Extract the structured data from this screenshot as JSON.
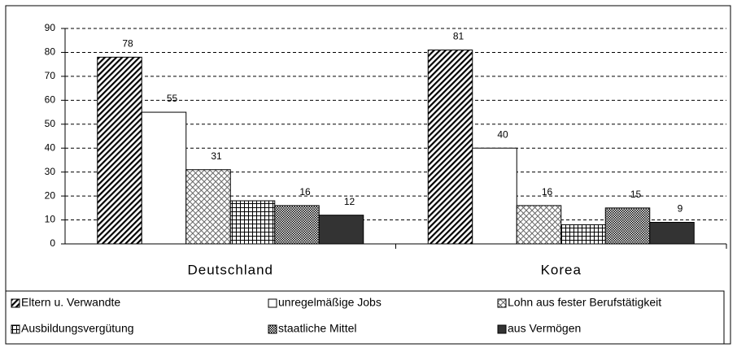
{
  "chart_data": {
    "type": "bar",
    "categories": [
      "Deutschland",
      "Korea"
    ],
    "series": [
      {
        "name": "Eltern u. Verwandte",
        "color": "#000000",
        "pattern": "diagonal",
        "values": [
          78,
          81
        ]
      },
      {
        "name": "unregelmäßige Jobs",
        "color": "#ffffff",
        "pattern": "none",
        "values": [
          55,
          40
        ]
      },
      {
        "name": "Lohn aus fester Berufstätigkeit",
        "color": "#000000",
        "pattern": "crosshatch",
        "values": [
          31,
          16
        ]
      },
      {
        "name": "Ausbildungsvergütung",
        "color": "#000000",
        "pattern": "grid",
        "labels": false,
        "values": [
          18,
          8
        ]
      },
      {
        "name": "staatliche Mittel",
        "color": "#000000",
        "pattern": "dots",
        "values": [
          16,
          15
        ]
      },
      {
        "name": "aus Vermögen",
        "color": "#333333",
        "pattern": "solid",
        "values": [
          12,
          9
        ]
      }
    ],
    "ylim": [
      0,
      90
    ],
    "yticks": [
      0,
      10,
      20,
      30,
      40,
      50,
      60,
      70,
      80,
      90
    ],
    "grid": true,
    "legend": "bottom"
  }
}
